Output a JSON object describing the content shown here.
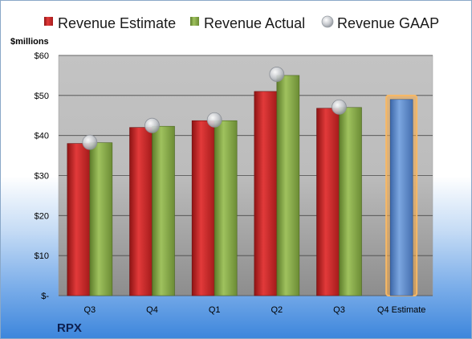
{
  "chart_data": {
    "type": "bar",
    "title": "",
    "ticker": "RPX",
    "ylabel": "$millions",
    "xlabel": "",
    "ylim": [
      0,
      60
    ],
    "y_ticks": [
      {
        "value": 0,
        "label": "$-"
      },
      {
        "value": 10,
        "label": "$10"
      },
      {
        "value": 20,
        "label": "$20"
      },
      {
        "value": 30,
        "label": "$30"
      },
      {
        "value": 40,
        "label": "$40"
      },
      {
        "value": 50,
        "label": "$50"
      },
      {
        "value": 60,
        "label": "$60"
      }
    ],
    "categories": [
      "Q3",
      "Q4",
      "Q1",
      "Q2",
      "Q3",
      "Q4 Estimate"
    ],
    "legend_position": "top",
    "grid": true,
    "series": [
      {
        "name": "Revenue Estimate",
        "kind": "bar",
        "color": "#d42a2a",
        "values": [
          38,
          42,
          43.7,
          51,
          46.8,
          null
        ]
      },
      {
        "name": "Revenue Actual",
        "kind": "bar",
        "color": "#8cae4e",
        "values": [
          38.2,
          42.3,
          43.7,
          55,
          47,
          null
        ]
      },
      {
        "name": "Revenue GAAP",
        "kind": "marker",
        "color": "#b9bcc2",
        "values": [
          38.3,
          42.5,
          43.9,
          55.3,
          47.1,
          null
        ]
      },
      {
        "name": "",
        "kind": "bar",
        "color": "#6b97d4",
        "highlight": "#f4a745",
        "values": [
          null,
          null,
          null,
          null,
          null,
          49
        ]
      }
    ]
  }
}
